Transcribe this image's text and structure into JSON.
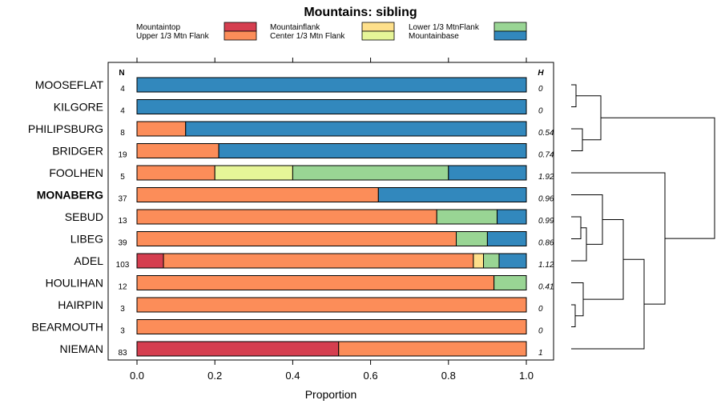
{
  "chart_data": {
    "type": "bar",
    "stacked": true,
    "orientation": "horizontal",
    "title": "Mountains: sibling",
    "xlabel": "Proportion",
    "xlim": [
      0,
      1
    ],
    "xticks": [
      "0.0",
      "0.2",
      "0.4",
      "0.6",
      "0.8",
      "1.0"
    ],
    "n_header": "N",
    "h_header": "H",
    "legend": [
      {
        "name": "Mountaintop",
        "color": "#d53e4f"
      },
      {
        "name": "Upper 1/3 Mtn Flank",
        "color": "#fc8d59"
      },
      {
        "name": "Mountainflank",
        "color": "#fee08b"
      },
      {
        "name": "Center 1/3 Mtn Flank",
        "color": "#e6f598"
      },
      {
        "name": "Lower 1/3 MtnFlank",
        "color": "#99d594"
      },
      {
        "name": "Mountainbase",
        "color": "#3288bd"
      }
    ],
    "series_order": [
      "Mountaintop",
      "Upper 1/3 Mtn Flank",
      "Mountainflank",
      "Center 1/3 Mtn Flank",
      "Lower 1/3 MtnFlank",
      "Mountainbase"
    ],
    "rows": [
      {
        "label": "MOOSEFLAT",
        "n": "4",
        "h": "0",
        "bold": false,
        "values": [
          0,
          0,
          0,
          0,
          0,
          1.0
        ]
      },
      {
        "label": "KILGORE",
        "n": "4",
        "h": "0",
        "bold": false,
        "values": [
          0,
          0,
          0,
          0,
          0,
          1.0
        ]
      },
      {
        "label": "PHILIPSBURG",
        "n": "8",
        "h": "0.54",
        "bold": false,
        "values": [
          0,
          0.125,
          0,
          0,
          0,
          0.875
        ]
      },
      {
        "label": "BRIDGER",
        "n": "19",
        "h": "0.74",
        "bold": false,
        "values": [
          0,
          0.21,
          0,
          0,
          0,
          0.79
        ]
      },
      {
        "label": "FOOLHEN",
        "n": "5",
        "h": "1.92",
        "bold": false,
        "values": [
          0,
          0.2,
          0,
          0.2,
          0.4,
          0.2
        ]
      },
      {
        "label": "MONABERG",
        "n": "37",
        "h": "0.96",
        "bold": true,
        "values": [
          0,
          0.62,
          0,
          0,
          0,
          0.38
        ]
      },
      {
        "label": "SEBUD",
        "n": "13",
        "h": "0.99",
        "bold": false,
        "values": [
          0,
          0.77,
          0,
          0,
          0.155,
          0.075
        ]
      },
      {
        "label": "LIBEG",
        "n": "39",
        "h": "0.86",
        "bold": false,
        "values": [
          0,
          0.82,
          0,
          0,
          0.08,
          0.1
        ]
      },
      {
        "label": "ADEL",
        "n": "103",
        "h": "1.12",
        "bold": false,
        "values": [
          0.068,
          0.796,
          0.026,
          0,
          0.04,
          0.07
        ]
      },
      {
        "label": "HOULIHAN",
        "n": "12",
        "h": "0.41",
        "bold": false,
        "values": [
          0,
          0.917,
          0,
          0,
          0.083,
          0
        ]
      },
      {
        "label": "HAIRPIN",
        "n": "3",
        "h": "0",
        "bold": false,
        "values": [
          0,
          1.0,
          0,
          0,
          0,
          0
        ]
      },
      {
        "label": "BEARMOUTH",
        "n": "3",
        "h": "0",
        "bold": false,
        "values": [
          0,
          1.0,
          0,
          0,
          0,
          0
        ]
      },
      {
        "label": "NIEMAN",
        "n": "83",
        "h": "1",
        "bold": false,
        "values": [
          0.518,
          0.482,
          0,
          0,
          0,
          0
        ]
      }
    ],
    "dendrogram": "hierarchical clustering of rows (right side)"
  }
}
